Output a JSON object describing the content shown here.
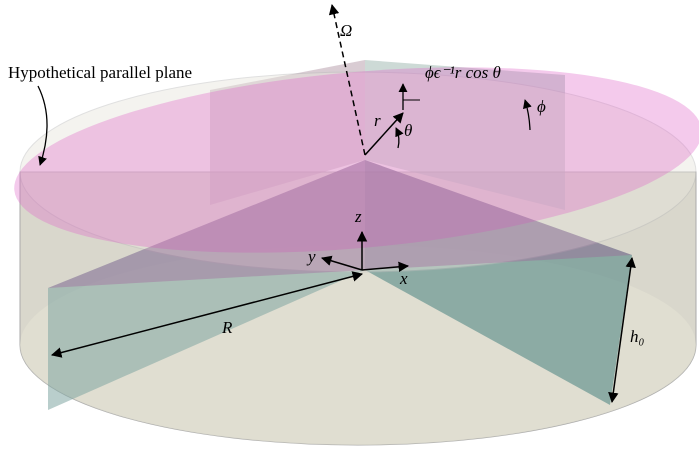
{
  "labels": {
    "plane": "Hypothetical parallel plane",
    "omega": "Ω",
    "tilt_expr": "ϕϵ⁻¹r cos θ",
    "phi": "ϕ",
    "r": "r",
    "theta": "θ",
    "z": "z",
    "y": "y",
    "x": "x",
    "R": "R",
    "h0": "h₀"
  }
}
